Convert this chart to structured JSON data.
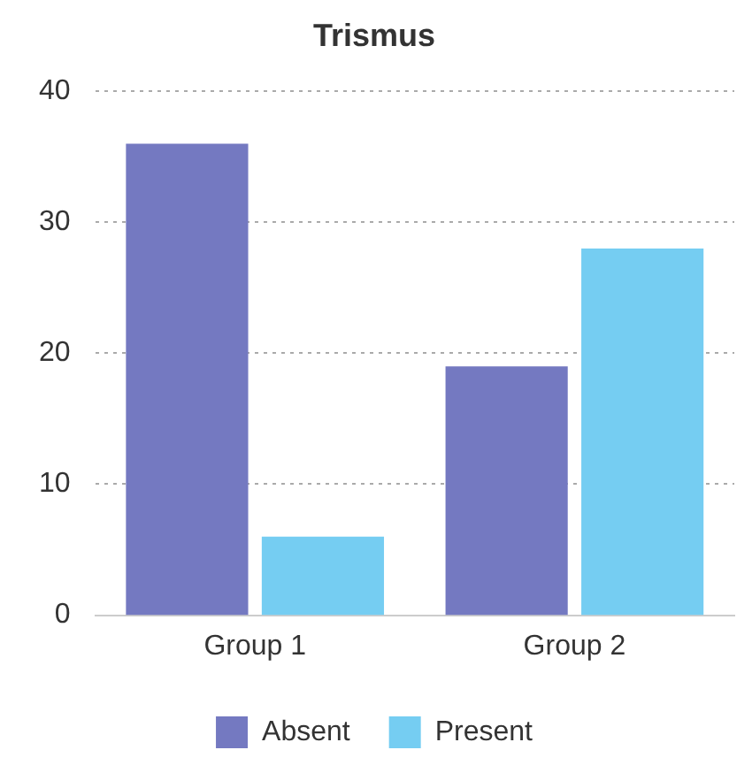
{
  "chart_data": {
    "type": "bar",
    "title": "Trismus",
    "categories": [
      "Group 1",
      "Group 2"
    ],
    "series": [
      {
        "name": "Absent",
        "color": "#7479c1",
        "values": [
          36,
          19
        ]
      },
      {
        "name": "Present",
        "color": "#75cdf2",
        "values": [
          6,
          28
        ]
      }
    ],
    "ylim": [
      0,
      40
    ],
    "yticks": [
      0,
      10,
      20,
      30,
      40
    ],
    "grid": "y",
    "legend": "bottom"
  }
}
